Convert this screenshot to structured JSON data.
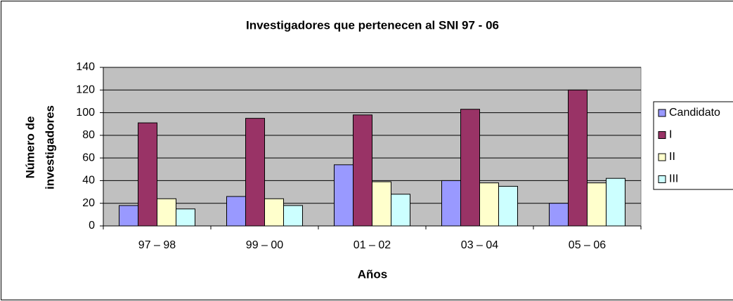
{
  "chart_data": {
    "type": "bar",
    "title": "Investigadores que pertenecen al SNI 97 - 06",
    "xlabel": "Años",
    "ylabel": [
      "Número de",
      "investigadores"
    ],
    "categories": [
      "97 – 98",
      "99 – 00",
      "01 – 02",
      "03 – 04",
      "05 – 06"
    ],
    "series": [
      {
        "name": "Candidato",
        "color": "#9999ff",
        "values": [
          18,
          26,
          54,
          40,
          20
        ]
      },
      {
        "name": "I",
        "color": "#993366",
        "values": [
          91,
          95,
          98,
          103,
          120
        ]
      },
      {
        "name": "II",
        "color": "#ffffcc",
        "values": [
          24,
          24,
          39,
          38,
          38
        ]
      },
      {
        "name": "III",
        "color": "#ccffff",
        "values": [
          15,
          18,
          28,
          35,
          42
        ]
      }
    ],
    "ylim": [
      0,
      140
    ],
    "yticks": [
      0,
      20,
      40,
      60,
      80,
      100,
      120,
      140
    ],
    "grid": true,
    "legend": "right"
  }
}
